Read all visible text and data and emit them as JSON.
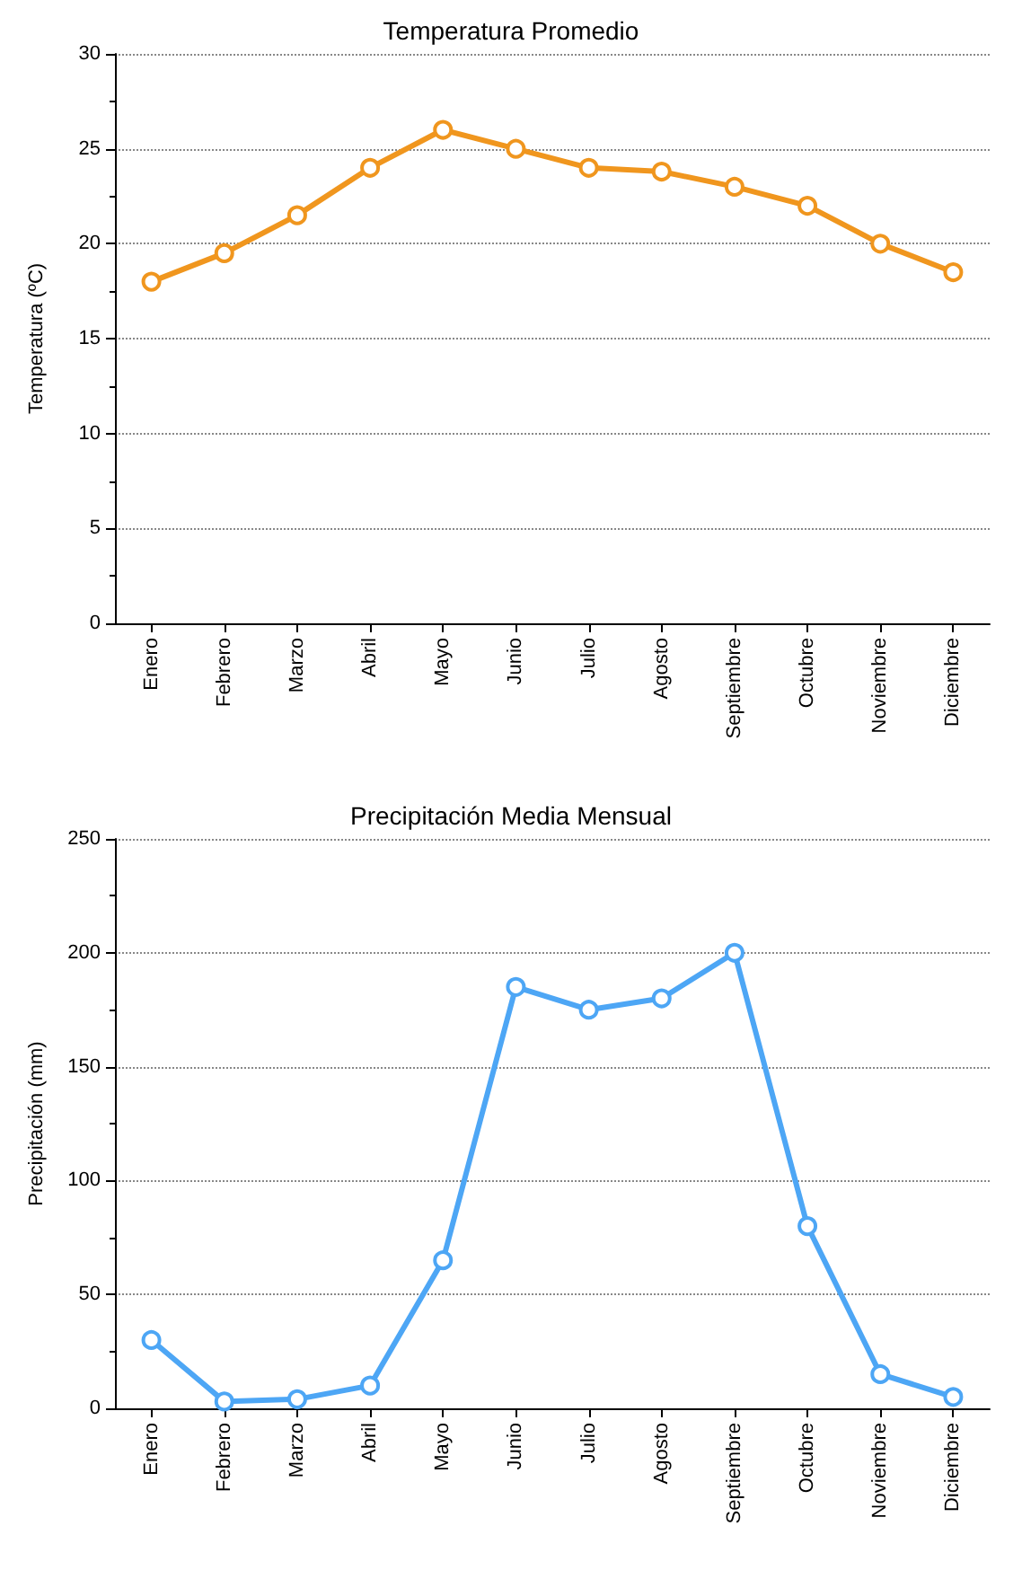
{
  "chart_data": [
    {
      "type": "line",
      "title": "Temperatura Promedio",
      "ylabel": "Temperatura (ºC)",
      "categories": [
        "Enero",
        "Febrero",
        "Marzo",
        "Abril",
        "Mayo",
        "Junio",
        "Julio",
        "Agosto",
        "Septiembre",
        "Octubre",
        "Noviembre",
        "Diciembre"
      ],
      "series": [
        {
          "color": "#f0961e",
          "values": [
            18,
            19.5,
            21.5,
            24,
            26,
            25,
            24,
            23.8,
            23,
            22,
            20,
            18.5
          ]
        }
      ],
      "ylim": [
        0,
        30
      ],
      "yticks": [
        0,
        5,
        10,
        15,
        20,
        25,
        30
      ],
      "grid": "y",
      "marker": "circle",
      "line_style": "solid"
    },
    {
      "type": "line",
      "title": "Precipitación Media Mensual",
      "ylabel": "Precipitación (mm)",
      "categories": [
        "Enero",
        "Febrero",
        "Marzo",
        "Abril",
        "Mayo",
        "Junio",
        "Julio",
        "Agosto",
        "Septiembre",
        "Octubre",
        "Noviembre",
        "Diciembre"
      ],
      "series": [
        {
          "color": "#4da6f5",
          "values": [
            30,
            3,
            4,
            10,
            65,
            185,
            175,
            180,
            200,
            80,
            15,
            5
          ]
        }
      ],
      "ylim": [
        0,
        250
      ],
      "yticks": [
        0,
        50,
        100,
        150,
        200,
        250
      ],
      "grid": "y",
      "marker": "circle",
      "line_style": "solid"
    }
  ]
}
